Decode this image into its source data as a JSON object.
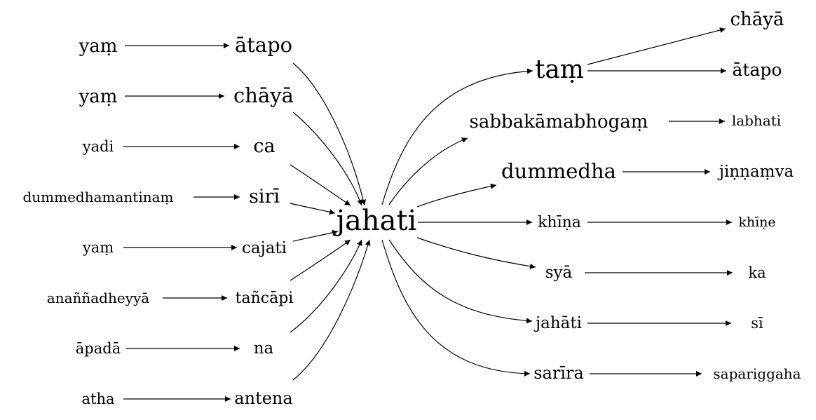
{
  "graph": {
    "center": "jahati",
    "left_sources": [
      "yaṃ",
      "yaṃ",
      "yadi",
      "dummedhamantinaṃ",
      "yaṃ",
      "anaññadheyyā",
      "āpadā",
      "atha"
    ],
    "left_targets": [
      "ātapo",
      "chāyā",
      "ca",
      "sirī",
      "cajati",
      "tañcāpi",
      "na",
      "antena"
    ],
    "right_first": [
      "taṃ",
      "sabbakāmabhogaṃ",
      "dummedha",
      "khīṇa",
      "syā",
      "jahāti",
      "sarīra"
    ],
    "right_second": [
      "chāyā",
      "ātapo",
      "labhati",
      "jiṇṇaṃva",
      "khīṇe",
      "ka",
      "sī",
      "sapariggaha"
    ]
  }
}
